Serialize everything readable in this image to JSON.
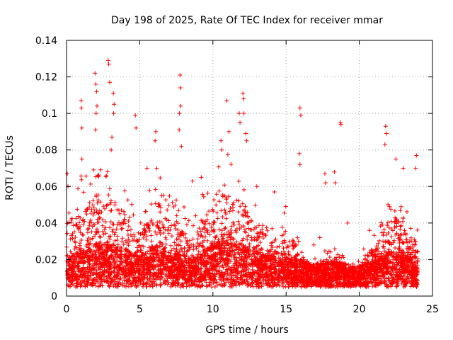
{
  "chart_data": {
    "type": "scatter",
    "title": "Day 198 of 2025, Rate Of TEC Index for receiver mmar",
    "xlabel": "GPS time / hours",
    "ylabel": "ROTI / TECUs",
    "xlim": [
      0,
      25
    ],
    "ylim": [
      0,
      0.14
    ],
    "x_ticks": [
      0,
      5,
      10,
      15,
      20,
      25
    ],
    "x_tick_labels": [
      "0",
      "5",
      "10",
      "15",
      "20",
      "25"
    ],
    "y_ticks": [
      0,
      0.02,
      0.04,
      0.06,
      0.08,
      0.1,
      0.12,
      0.14
    ],
    "y_tick_labels": [
      "0",
      "0.02",
      "0.04",
      "0.06",
      "0.08",
      "0.1",
      "0.12",
      "0.14"
    ],
    "grid": true,
    "marker": "+",
    "color": "#ff0000",
    "series": [
      {
        "name": "ROTI",
        "profile": [
          [
            0.0,
            0.012,
            0.055
          ],
          [
            0.5,
            0.014,
            0.06
          ],
          [
            1.0,
            0.016,
            0.07
          ],
          [
            1.5,
            0.016,
            0.068
          ],
          [
            2.0,
            0.018,
            0.075
          ],
          [
            2.5,
            0.018,
            0.07
          ],
          [
            3.0,
            0.018,
            0.075
          ],
          [
            3.5,
            0.017,
            0.065
          ],
          [
            4.0,
            0.016,
            0.06
          ],
          [
            4.5,
            0.014,
            0.052
          ],
          [
            5.0,
            0.013,
            0.045
          ],
          [
            5.5,
            0.015,
            0.058
          ],
          [
            6.0,
            0.018,
            0.075
          ],
          [
            6.5,
            0.017,
            0.065
          ],
          [
            7.0,
            0.015,
            0.055
          ],
          [
            7.5,
            0.014,
            0.055
          ],
          [
            8.0,
            0.013,
            0.05
          ],
          [
            8.5,
            0.012,
            0.04
          ],
          [
            9.0,
            0.014,
            0.05
          ],
          [
            9.5,
            0.016,
            0.06
          ],
          [
            10.0,
            0.018,
            0.07
          ],
          [
            10.5,
            0.02,
            0.08
          ],
          [
            11.0,
            0.02,
            0.078
          ],
          [
            11.5,
            0.018,
            0.072
          ],
          [
            12.0,
            0.018,
            0.07
          ],
          [
            12.5,
            0.016,
            0.06
          ],
          [
            13.0,
            0.015,
            0.05
          ],
          [
            13.5,
            0.014,
            0.045
          ],
          [
            14.0,
            0.013,
            0.042
          ],
          [
            14.5,
            0.013,
            0.042
          ],
          [
            15.0,
            0.013,
            0.05
          ],
          [
            15.5,
            0.012,
            0.04
          ],
          [
            16.0,
            0.011,
            0.03
          ],
          [
            16.5,
            0.01,
            0.024
          ],
          [
            17.0,
            0.01,
            0.022
          ],
          [
            17.5,
            0.01,
            0.025
          ],
          [
            18.0,
            0.01,
            0.025
          ],
          [
            18.5,
            0.011,
            0.03
          ],
          [
            19.0,
            0.01,
            0.025
          ],
          [
            19.5,
            0.009,
            0.018
          ],
          [
            20.0,
            0.009,
            0.02
          ],
          [
            20.5,
            0.01,
            0.03
          ],
          [
            21.0,
            0.011,
            0.035
          ],
          [
            21.5,
            0.013,
            0.045
          ],
          [
            22.0,
            0.015,
            0.055
          ],
          [
            22.5,
            0.015,
            0.058
          ],
          [
            23.0,
            0.014,
            0.05
          ],
          [
            23.5,
            0.013,
            0.045
          ],
          [
            24.0,
            0.012,
            0.04
          ]
        ],
        "outliers": [
          [
            1.0,
            0.107
          ],
          [
            1.02,
            0.103
          ],
          [
            1.05,
            0.092
          ],
          [
            1.05,
            0.075
          ],
          [
            1.95,
            0.122
          ],
          [
            2.0,
            0.116
          ],
          [
            2.05,
            0.112
          ],
          [
            2.08,
            0.104
          ],
          [
            2.02,
            0.1
          ],
          [
            1.98,
            0.091
          ],
          [
            2.85,
            0.129
          ],
          [
            2.88,
            0.127
          ],
          [
            2.95,
            0.117
          ],
          [
            3.2,
            0.111
          ],
          [
            3.25,
            0.105
          ],
          [
            3.22,
            0.1
          ],
          [
            3.1,
            0.087
          ],
          [
            3.05,
            0.08
          ],
          [
            4.7,
            0.099
          ],
          [
            4.75,
            0.092
          ],
          [
            6.1,
            0.09
          ],
          [
            6.05,
            0.085
          ],
          [
            7.75,
            0.121
          ],
          [
            7.78,
            0.114
          ],
          [
            7.8,
            0.104
          ],
          [
            7.72,
            0.1
          ],
          [
            7.7,
            0.091
          ],
          [
            7.85,
            0.082
          ],
          [
            10.55,
            0.085
          ],
          [
            10.6,
            0.08
          ],
          [
            10.95,
            0.107
          ],
          [
            11.1,
            0.09
          ],
          [
            11.8,
            0.1
          ],
          [
            11.85,
            0.095
          ],
          [
            12.05,
            0.111
          ],
          [
            12.1,
            0.108
          ],
          [
            12.12,
            0.1
          ],
          [
            12.25,
            0.089
          ],
          [
            12.3,
            0.085
          ],
          [
            15.95,
            0.103
          ],
          [
            16.0,
            0.099
          ],
          [
            15.9,
            0.078
          ],
          [
            15.95,
            0.072
          ],
          [
            17.65,
            0.067
          ],
          [
            17.7,
            0.062
          ],
          [
            18.3,
            0.068
          ],
          [
            18.35,
            0.062
          ],
          [
            18.7,
            0.095
          ],
          [
            18.75,
            0.094
          ],
          [
            21.8,
            0.093
          ],
          [
            21.85,
            0.089
          ],
          [
            21.75,
            0.083
          ],
          [
            22.5,
            0.075
          ],
          [
            23.0,
            0.07
          ],
          [
            23.9,
            0.077
          ],
          [
            23.85,
            0.07
          ],
          [
            0.05,
            0.067
          ],
          [
            0.1,
            0.06
          ],
          [
            5.5,
            0.07
          ],
          [
            8.6,
            0.063
          ],
          [
            9.2,
            0.065
          ],
          [
            13.0,
            0.06
          ],
          [
            14.2,
            0.057
          ],
          [
            20.7,
            0.036
          ],
          [
            19.2,
            0.04
          ],
          [
            16.9,
            0.028
          ],
          [
            17.3,
            0.032
          ]
        ]
      }
    ]
  }
}
